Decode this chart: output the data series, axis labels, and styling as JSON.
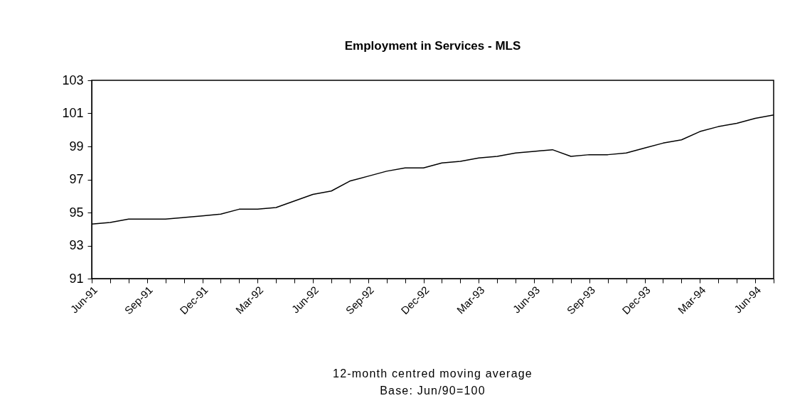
{
  "chart_data": {
    "type": "line",
    "title": "Employment in Services - MLS",
    "categories": [
      "Jun-91",
      null,
      null,
      "Sep-91",
      null,
      null,
      "Dec-91",
      null,
      null,
      "Mar-92",
      null,
      null,
      "Jun-92",
      null,
      null,
      "Sep-92",
      null,
      null,
      "Dec-92",
      null,
      null,
      "Mar-93",
      null,
      null,
      "Jun-93",
      null,
      null,
      "Sep-93",
      null,
      null,
      "Dec-93",
      null,
      null,
      "Mar-94",
      null,
      null,
      "Jun-94",
      null
    ],
    "series": [
      {
        "color": "#000000",
        "values": [
          94.3,
          94.4,
          94.6,
          94.6,
          94.6,
          94.7,
          94.8,
          94.9,
          95.2,
          95.2,
          95.3,
          95.7,
          96.1,
          96.3,
          96.9,
          97.2,
          97.5,
          97.7,
          97.7,
          98.0,
          98.1,
          98.3,
          98.4,
          98.6,
          98.7,
          98.8,
          98.4,
          98.5,
          98.5,
          98.6,
          98.9,
          99.2,
          99.4,
          99.9,
          100.2,
          100.4,
          100.7,
          100.9
        ]
      }
    ],
    "ylim": [
      91,
      103
    ],
    "yticks": [
      91,
      93,
      95,
      97,
      99,
      101,
      103
    ],
    "annotations": [
      "12-month centred moving average",
      "Base: Jun/90=100"
    ]
  }
}
